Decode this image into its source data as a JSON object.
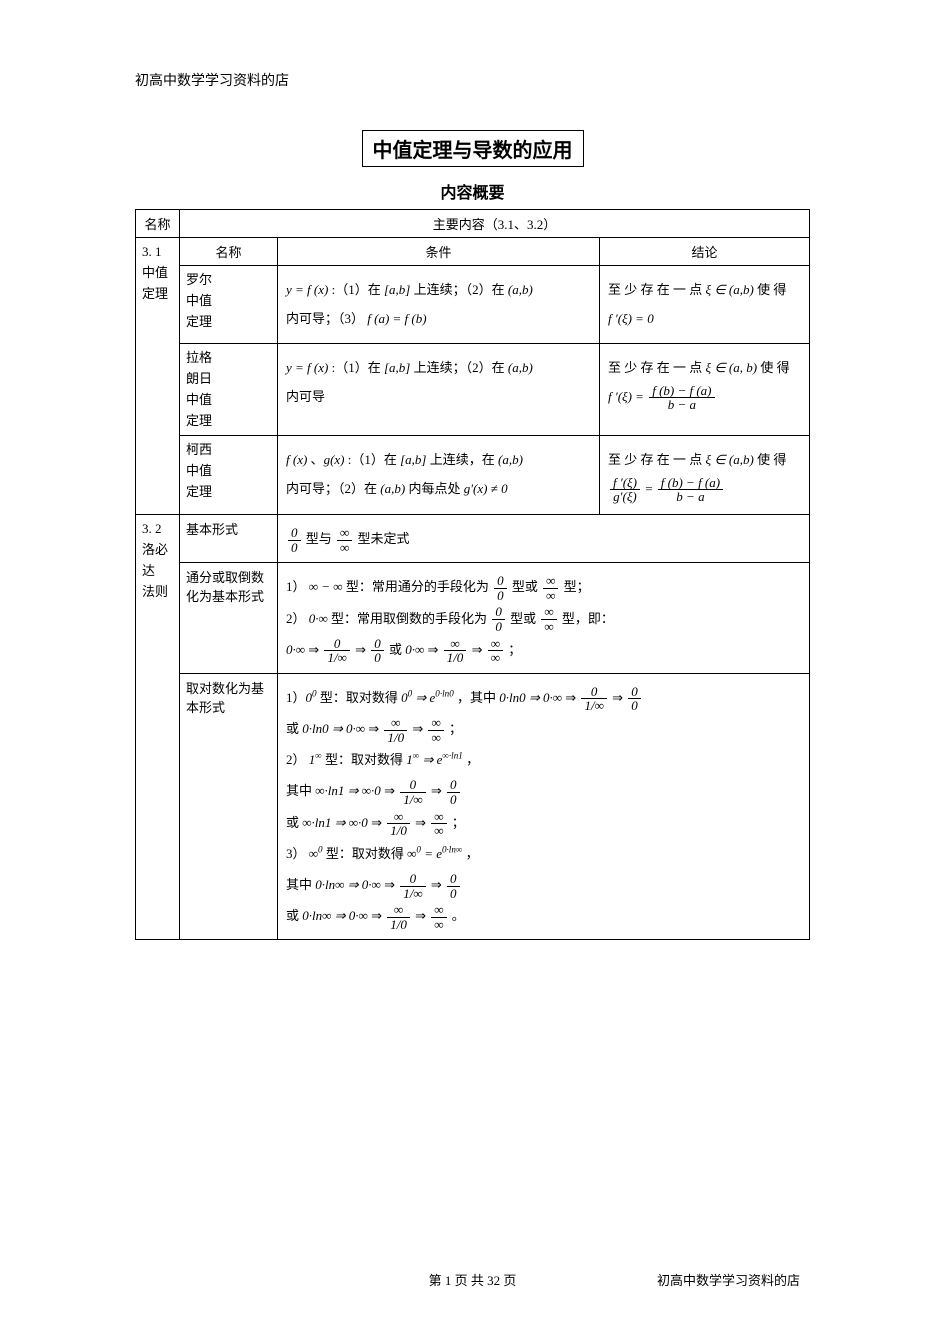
{
  "header": "初高中数学学习资料的店",
  "title": "中值定理与导数的应用",
  "subtitle": "内容概要",
  "colors": {
    "text": "#000000",
    "background": "#ffffff",
    "border": "#000000"
  },
  "typography": {
    "body_family": "SimSun",
    "math_family": "Times New Roman",
    "body_size_pt": 10.5,
    "title_size_pt": 16,
    "subtitle_size_pt": 12
  },
  "table": {
    "header_row": {
      "name": "名称",
      "content": "主要内容（3.1、3.2）"
    },
    "section_31": {
      "id": "3.1",
      "label_lines": [
        "3. 1",
        "中值",
        "定理"
      ],
      "columns": {
        "name": "名称",
        "condition": "条件",
        "conclusion": "结论"
      },
      "rows": [
        {
          "name_lines": [
            "罗尔",
            "中值",
            "定理"
          ],
          "condition_html": "<span class='math-i'>y = f (x)</span> :（1）在 <span class='math-i'>[a,b]</span> 上连续；（2）在 <span class='math-i'>(a,b)</span><br>内可导；（3） <span class='math-i'>f (a) = f (b)</span>",
          "conclusion_html": "至 少 存 在 一 点 <span class='math-i'>ξ ∈ (a,b)</span> 使 得<br><span class='math-i'>f ′(ξ) = 0</span>"
        },
        {
          "name_lines": [
            "拉格",
            "朗日",
            "中值",
            "定理"
          ],
          "condition_html": "<span class='math-i'>y = f (x)</span> :（1）在 <span class='math-i'>[a,b]</span> 上连续；（2）在 <span class='math-i'>(a,b)</span><br>内可导",
          "conclusion_html": "至 少 存 在 一 点 <span class='math-i'>ξ ∈ (a, b)</span> 使 得<br><span class='math-i'>f ′(ξ) = </span><span class='frac'><span class='num'>f (b) − f (a)</span><span class='den'>b − a</span></span>"
        },
        {
          "name_lines": [
            "柯西",
            "中值",
            "定理"
          ],
          "condition_html": "<span class='math-i'>f (x)</span> 、<span class='math-i'>g(x)</span> :（1）在 <span class='math-i'>[a,b]</span> 上连续，在 <span class='math-i'>(a,b)</span><br>内可导；（2）在 <span class='math-i'>(a,b)</span> 内每点处 <span class='math-i'>g′(x) ≠ 0</span>",
          "conclusion_html": "至 少 存 在 一 点 <span class='math-i'>ξ ∈ (a,b)</span> 使 得<br><span class='frac'><span class='num'>f ′(ξ)</span><span class='den'>g′(ξ)</span></span> = <span class='frac'><span class='num'>f (b) − f (a)</span><span class='den'>b − a</span></span>"
        }
      ]
    },
    "section_32": {
      "id": "3.2",
      "label_lines": [
        "3. 2",
        "洛必",
        "达",
        "法则"
      ],
      "rows": [
        {
          "form": "基本形式",
          "content_html": "<span class='frac'><span class='num'>0</span><span class='den'>0</span></span> 型与 <span class='frac'><span class='num'>∞</span><span class='den'>∞</span></span> 型未定式"
        },
        {
          "form": "通分或取倒数化为基本形式",
          "content_html": "1） <span class='math-i'>∞ − ∞</span> 型：常用通分的手段化为 <span class='frac'><span class='num'>0</span><span class='den'>0</span></span> 型或 <span class='frac'><span class='num'>∞</span><span class='den'>∞</span></span> 型；<br>2） <span class='math-i'>0·∞</span> 型：常用取倒数的手段化为 <span class='frac'><span class='num'>0</span><span class='den'>0</span></span> 型或 <span class='frac'><span class='num'>∞</span><span class='den'>∞</span></span> 型，即：<br><span class='math-i'>0·∞</span> ⇒ <span class='frac'><span class='num'>0</span><span class='den'>1/∞</span></span> ⇒ <span class='frac'><span class='num'>0</span><span class='den'>0</span></span> 或 <span class='math-i'>0·∞</span> ⇒ <span class='frac'><span class='num'>∞</span><span class='den'>1/0</span></span> ⇒ <span class='frac'><span class='num'>∞</span><span class='den'>∞</span></span> ；"
        },
        {
          "form": "取对数化为基本形式",
          "content_html": "1）<span class='math-i'>0<sup>0</sup></span> 型：取对数得 <span class='math-i'>0<sup>0</sup> ⇒ e<sup>0·ln0</sup></span> ，其中 <span class='math-i'>0·ln0 ⇒ 0·∞</span> ⇒ <span class='frac'><span class='num'>0</span><span class='den'>1/∞</span></span> ⇒ <span class='frac'><span class='num'>0</span><span class='den'>0</span></span><br>或 <span class='math-i'>0·ln0 ⇒ 0·∞</span> ⇒ <span class='frac'><span class='num'>∞</span><span class='den'>1/0</span></span> ⇒ <span class='frac'><span class='num'>∞</span><span class='den'>∞</span></span> ；<br>2） <span class='math-i'>1<sup>∞</sup></span> 型：取对数得 <span class='math-i'>1<sup>∞</sup> ⇒ e<sup>∞·ln1</sup></span> ，<br>其中 <span class='math-i'>∞·ln1 ⇒ ∞·0</span> ⇒ <span class='frac'><span class='num'>0</span><span class='den'>1/∞</span></span> ⇒ <span class='frac'><span class='num'>0</span><span class='den'>0</span></span><br>或 <span class='math-i'>∞·ln1 ⇒ ∞·0</span> ⇒ <span class='frac'><span class='num'>∞</span><span class='den'>1/0</span></span> ⇒ <span class='frac'><span class='num'>∞</span><span class='den'>∞</span></span> ；<br>3） <span class='math-i'>∞<sup>0</sup></span> 型：取对数得 <span class='math-i'>∞<sup>0</sup> = e<sup>0·ln∞</sup></span> ，<br>其中 <span class='math-i'>0·ln∞ ⇒ 0·∞</span> ⇒ <span class='frac'><span class='num'>0</span><span class='den'>1/∞</span></span> ⇒ <span class='frac'><span class='num'>0</span><span class='den'>0</span></span><br>或 <span class='math-i'>0·ln∞ ⇒ 0·∞</span> ⇒ <span class='frac'><span class='num'>∞</span><span class='den'>1/0</span></span> ⇒ <span class='frac'><span class='num'>∞</span><span class='den'>∞</span></span> 。"
        }
      ]
    }
  },
  "footer": {
    "page_text": "第 1 页 共 32 页",
    "right_text": "初高中数学学习资料的店"
  }
}
